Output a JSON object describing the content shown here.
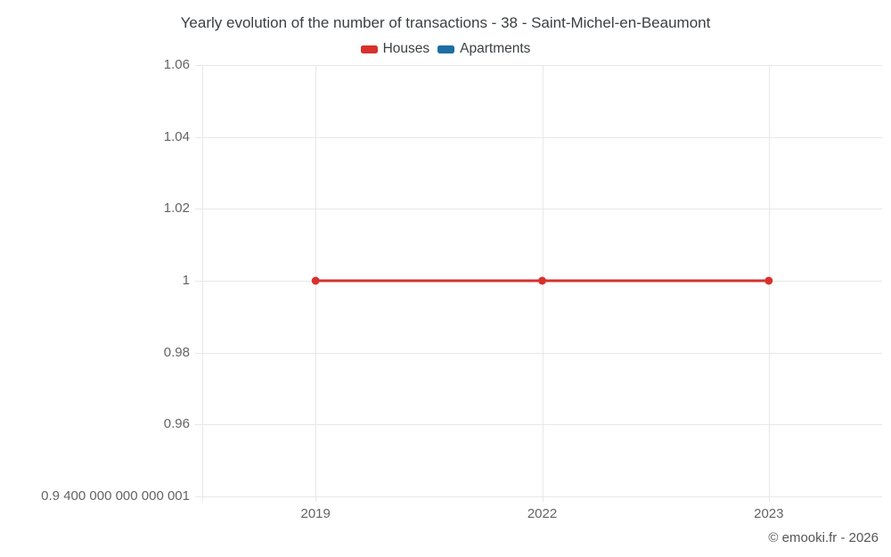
{
  "chart": {
    "title": "Yearly evolution of the number of transactions - 38 - Saint-Michel-en-Beaumont",
    "footer": "© emooki.fr - 2026"
  },
  "chart_data": {
    "type": "line",
    "title": "Yearly evolution of the number of transactions - 38 - Saint-Michel-en-Beaumont",
    "categories": [
      "2019",
      "2022",
      "2023"
    ],
    "series": [
      {
        "name": "Houses",
        "color": "#d7312e",
        "values": [
          1,
          1,
          1
        ]
      },
      {
        "name": "Apartments",
        "color": "#1c6ea4",
        "values": []
      }
    ],
    "xlabel": "",
    "ylabel": "",
    "ylim": [
      0.94,
      1.06
    ],
    "yticks": [
      {
        "value": 1.06,
        "label": "1.06"
      },
      {
        "value": 1.04,
        "label": "1.04"
      },
      {
        "value": 1.02,
        "label": "1.02"
      },
      {
        "value": 1.0,
        "label": "1"
      },
      {
        "value": 0.98,
        "label": "0.98"
      },
      {
        "value": 0.96,
        "label": "0.96"
      },
      {
        "value": 0.94,
        "label": "0.9 400 000 000 000 001"
      }
    ],
    "grid": true,
    "legend_position": "top"
  }
}
